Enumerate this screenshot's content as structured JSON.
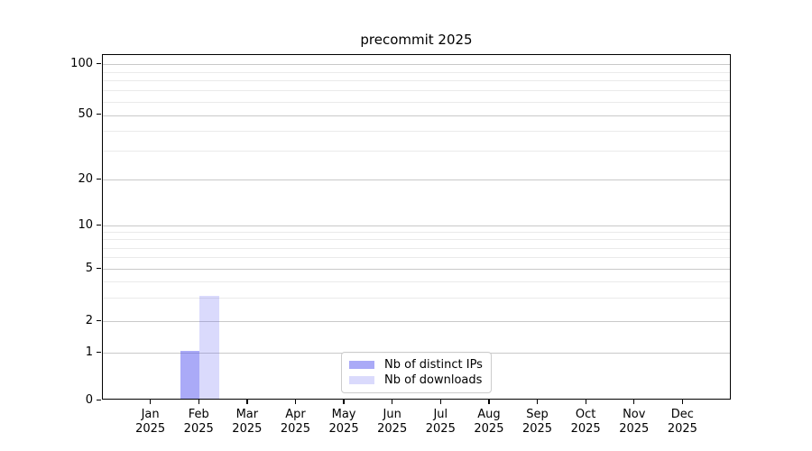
{
  "chart_data": {
    "type": "bar",
    "title": "precommit 2025",
    "x_axis": {
      "categories": [
        "Jan",
        "Feb",
        "Mar",
        "Apr",
        "May",
        "Jun",
        "Jul",
        "Aug",
        "Sep",
        "Oct",
        "Nov",
        "Dec"
      ],
      "year_label": "2025"
    },
    "y_axis": {
      "scale": "log above 1, linear 0-1",
      "major_ticks": [
        0,
        1,
        2,
        5,
        10,
        20,
        50,
        100
      ],
      "minor_ticks": [
        3,
        4,
        6,
        7,
        8,
        9,
        30,
        40,
        60,
        70,
        80,
        90
      ],
      "ylim": [
        0,
        130
      ]
    },
    "series": [
      {
        "name": "Nb of distinct IPs",
        "base_color": "#5555f0",
        "alpha": 0.5,
        "values": [
          0,
          1,
          0,
          0,
          0,
          0,
          0,
          0,
          0,
          0,
          0,
          0
        ]
      },
      {
        "name": "Nb of downloads",
        "base_color": "#5555f0",
        "alpha": 0.22,
        "values": [
          0,
          3,
          0,
          0,
          0,
          0,
          0,
          0,
          0,
          0,
          0,
          0
        ]
      }
    ],
    "legend": {
      "position": "lower center",
      "entries": [
        "Nb of distinct IPs",
        "Nb of downloads"
      ]
    },
    "grid": {
      "enabled": true,
      "major_color": "#c9c9c9",
      "minor_color": "#eaeaea"
    }
  }
}
